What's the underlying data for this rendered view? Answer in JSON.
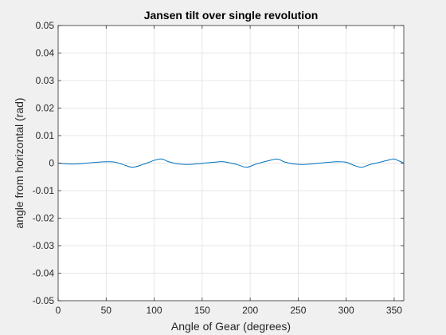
{
  "chart_data": {
    "type": "line",
    "title": "Jansen tilt over single revolution",
    "xlabel": "Angle of Gear (degrees)",
    "ylabel": "angle from horizontal (rad)",
    "xlim": [
      0,
      360
    ],
    "ylim": [
      -0.05,
      0.05
    ],
    "xticks": [
      0,
      50,
      100,
      150,
      200,
      250,
      300,
      350
    ],
    "xtick_labels": [
      "0",
      "50",
      "100",
      "150",
      "200",
      "250",
      "300",
      "350"
    ],
    "yticks": [
      -0.05,
      -0.04,
      -0.03,
      -0.02,
      -0.01,
      0,
      0.01,
      0.02,
      0.03,
      0.04,
      0.05
    ],
    "ytick_labels": [
      "-0.05",
      "-0.04",
      "-0.03",
      "-0.02",
      "-0.01",
      "0",
      "0.01",
      "0.02",
      "0.03",
      "0.04",
      "0.05"
    ],
    "grid": true,
    "series": [
      {
        "color": "#0072bd",
        "x": [
          0,
          10,
          20,
          30,
          40,
          50,
          60,
          70,
          78,
          90,
          100,
          108,
          115,
          125,
          135,
          150,
          165,
          172,
          185,
          196,
          205,
          215,
          228,
          235,
          245,
          255,
          270,
          290,
          300,
          308,
          316,
          325,
          335,
          345,
          350,
          355,
          360
        ],
        "y": [
          0,
          -0.0003,
          -0.0003,
          0,
          0.0003,
          0.0005,
          0.0003,
          -0.0008,
          -0.0015,
          -0.0003,
          0.001,
          0.0015,
          0.0005,
          -0.0003,
          -0.0005,
          -0.0001,
          0.0004,
          0.0005,
          -0.0004,
          -0.0015,
          -0.0005,
          0.0005,
          0.0015,
          0.0005,
          -0.0003,
          -0.0005,
          -0.0001,
          0.0005,
          0.0003,
          -0.0008,
          -0.0015,
          -0.0005,
          0.0003,
          0.0012,
          0.0015,
          0.0008,
          0
        ]
      }
    ]
  }
}
